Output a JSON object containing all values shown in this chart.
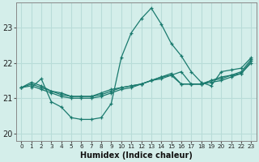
{
  "title": "",
  "xlabel": "Humidex (Indice chaleur)",
  "ylabel": "",
  "bg_color": "#d4eeea",
  "line_color": "#1a7a6e",
  "grid_color": "#b8dcd8",
  "xlim": [
    -0.5,
    23.5
  ],
  "ylim": [
    19.8,
    23.7
  ],
  "yticks": [
    20,
    21,
    22,
    23
  ],
  "xticks": [
    0,
    1,
    2,
    3,
    4,
    5,
    6,
    7,
    8,
    9,
    10,
    11,
    12,
    13,
    14,
    15,
    16,
    17,
    18,
    19,
    20,
    21,
    22,
    23
  ],
  "series": [
    [
      21.3,
      21.55,
      20.9,
      20.75,
      20.45,
      20.4,
      20.4,
      20.45,
      20.85,
      22.15,
      22.85,
      23.25,
      23.55,
      23.1,
      22.55,
      22.2,
      21.75,
      21.45,
      21.35,
      21.75,
      21.8,
      21.85,
      22.15
    ],
    [
      21.3,
      21.45,
      21.35,
      21.2,
      21.15,
      21.05,
      21.05,
      21.05,
      21.15,
      21.25,
      21.3,
      21.35,
      21.4,
      21.5,
      21.55,
      21.65,
      21.75,
      21.4,
      21.4,
      21.5,
      21.6,
      21.65,
      21.7,
      22.05
    ],
    [
      21.3,
      21.4,
      21.3,
      21.2,
      21.1,
      21.05,
      21.05,
      21.05,
      21.1,
      21.2,
      21.3,
      21.35,
      21.4,
      21.5,
      21.6,
      21.7,
      21.4,
      21.4,
      21.4,
      21.5,
      21.55,
      21.65,
      21.75,
      22.1
    ],
    [
      21.3,
      21.35,
      21.25,
      21.15,
      21.05,
      21.0,
      21.0,
      21.0,
      21.05,
      21.15,
      21.25,
      21.3,
      21.4,
      21.5,
      21.6,
      21.65,
      21.4,
      21.4,
      21.4,
      21.45,
      21.5,
      21.6,
      21.7,
      22.0
    ]
  ]
}
